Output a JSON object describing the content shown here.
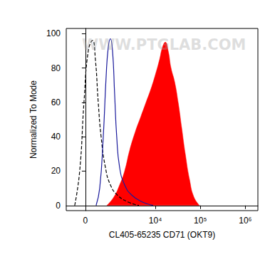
{
  "chart_data": {
    "type": "line",
    "watermark": "WWW.PTGLAB.COM",
    "xlabel": "CL405-65235 CD71 (OKT9)",
    "ylabel": "Normalized To Mode",
    "log": "x",
    "xlim": [
      -640,
      1900000
    ],
    "xticks": [
      {
        "value": 0,
        "label": "0"
      },
      {
        "value": 10000,
        "label": "10⁴"
      },
      {
        "value": 100000,
        "label": "10⁵"
      },
      {
        "value": 1000000,
        "label": "10⁶"
      }
    ],
    "ylim": [
      -3,
      103
    ],
    "yticks": [
      0,
      20,
      40,
      60,
      80,
      100
    ],
    "grid": false,
    "series": [
      {
        "color": "#ff0000",
        "line_style": "solid",
        "type": "area",
        "x": [
          743,
          1138,
          1563,
          2040,
          2655,
          3580,
          4795,
          6205,
          8020,
          9990,
          12440,
          14400,
          16660,
          19290,
          22300,
          26780,
          32140,
          38570,
          46300,
          57600,
          71670,
          96100
        ],
        "values": [
          0,
          5,
          12,
          20,
          32,
          43,
          52,
          60,
          68,
          76,
          85,
          92,
          95,
          90,
          80,
          72,
          60,
          45,
          30,
          15,
          5,
          0
        ]
      },
      {
        "color": "#000000",
        "line_style": "dashed",
        "type": "line",
        "x": [
          -321,
          -166,
          -41,
          82,
          209,
          298,
          394,
          499,
          679,
          925,
          1386,
          2465,
          4300
        ],
        "values": [
          0,
          20,
          60,
          90,
          96,
          85,
          60,
          40,
          22,
          12,
          6,
          2,
          0
        ]
      },
      {
        "color": "#1a1a9c",
        "line_style": "solid",
        "type": "line",
        "x": [
          321,
          446,
          585,
          710,
          813,
          925,
          1050,
          1183,
          1331,
          1563,
          2040,
          2970,
          5165,
          8930
        ],
        "values": [
          0,
          10,
          40,
          75,
          92,
          97,
          90,
          65,
          40,
          22,
          12,
          6,
          2,
          0
        ]
      }
    ]
  }
}
